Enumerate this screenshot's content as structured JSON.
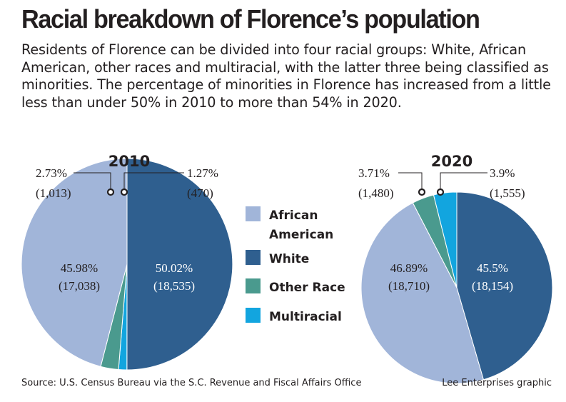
{
  "title": "Racial breakdown of Florence’s population",
  "subtitle": "Residents of Florence can be divided into four racial groups: White, African American, other races and multiracial, with the latter three being classified as minorities. The percentage of minorities in Florence has increased from a little less than under 50% in 2010 to more than 54% in 2020.",
  "source": "Source: U.S. Census Bureau via the S.C. Revenue and Fiscal Affairs Office",
  "credit": "Lee Enterprises graphic",
  "colors": {
    "African American": "#a1b5d9",
    "White": "#2f5f8f",
    "Other Race": "#4a9a8e",
    "Multiracial": "#12a5df"
  },
  "legend": [
    "African American",
    "White",
    "Other Race",
    "Multiracial"
  ],
  "chart_data": [
    {
      "type": "pie",
      "title": "2010",
      "slices": [
        {
          "category": "White",
          "percent": 50.02,
          "count": "18,535",
          "percent_label": "50.02%",
          "count_label": "(18,535)"
        },
        {
          "category": "Multiracial",
          "percent": 1.27,
          "count": "470",
          "percent_label": "1.27%",
          "count_label": "(470)"
        },
        {
          "category": "Other Race",
          "percent": 2.73,
          "count": "1,013",
          "percent_label": "2.73%",
          "count_label": "(1,013)"
        },
        {
          "category": "African American",
          "percent": 45.98,
          "count": "17,038",
          "percent_label": "45.98%",
          "count_label": "(17,038)"
        }
      ]
    },
    {
      "type": "pie",
      "title": "2020",
      "slices": [
        {
          "category": "White",
          "percent": 45.5,
          "count": "18,154",
          "percent_label": "45.5%",
          "count_label": "(18,154)"
        },
        {
          "category": "African American",
          "percent": 46.89,
          "count": "18,710",
          "percent_label": "46.89%",
          "count_label": "(18,710)"
        },
        {
          "category": "Other Race",
          "percent": 3.71,
          "count": "1,480",
          "percent_label": "3.71%",
          "count_label": "(1,480)"
        },
        {
          "category": "Multiracial",
          "percent": 3.9,
          "count": "1,555",
          "percent_label": "3.9%",
          "count_label": "(1,555)"
        }
      ]
    }
  ]
}
